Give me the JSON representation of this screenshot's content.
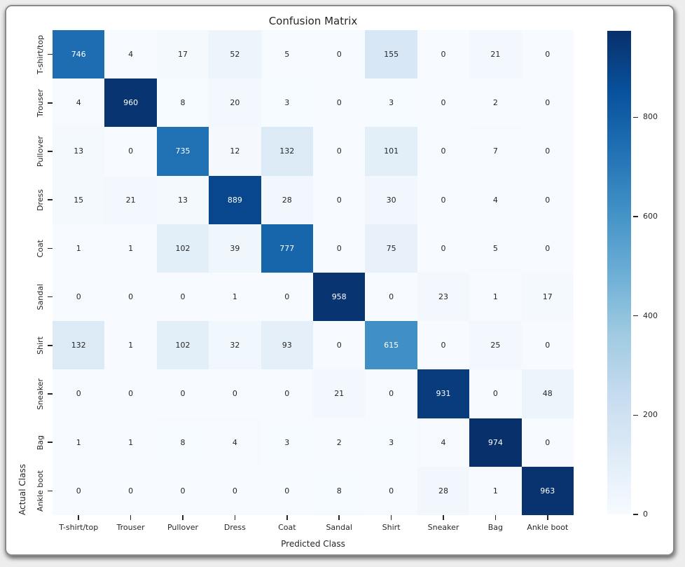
{
  "chart_data": {
    "type": "heatmap",
    "title": "Confusion Matrix",
    "xlabel": "Predicted Class",
    "ylabel": "Actual Class",
    "x_categories": [
      "T-shirt/top",
      "Trouser",
      "Pullover",
      "Dress",
      "Coat",
      "Sandal",
      "Shirt",
      "Sneaker",
      "Bag",
      "Ankle boot"
    ],
    "y_categories": [
      "T-shirt/top",
      "Trouser",
      "Pullover",
      "Dress",
      "Coat",
      "Sandal",
      "Shirt",
      "Sneaker",
      "Bag",
      "Ankle boot"
    ],
    "values": [
      [
        746,
        4,
        17,
        52,
        5,
        0,
        155,
        0,
        21,
        0
      ],
      [
        4,
        960,
        8,
        20,
        3,
        0,
        3,
        0,
        2,
        0
      ],
      [
        13,
        0,
        735,
        12,
        132,
        0,
        101,
        0,
        7,
        0
      ],
      [
        15,
        21,
        13,
        889,
        28,
        0,
        30,
        0,
        4,
        0
      ],
      [
        1,
        1,
        102,
        39,
        777,
        0,
        75,
        0,
        5,
        0
      ],
      [
        0,
        0,
        0,
        1,
        0,
        958,
        0,
        23,
        1,
        17
      ],
      [
        132,
        1,
        102,
        32,
        93,
        0,
        615,
        0,
        25,
        0
      ],
      [
        0,
        0,
        0,
        0,
        0,
        21,
        0,
        931,
        0,
        48
      ],
      [
        1,
        1,
        8,
        4,
        3,
        2,
        3,
        4,
        974,
        0
      ],
      [
        0,
        0,
        0,
        0,
        0,
        8,
        0,
        28,
        1,
        963
      ]
    ],
    "vmin": 0,
    "vmax": 974,
    "grid": false,
    "legend_position": "colorbar-right",
    "colorbar_ticks": [
      0,
      200,
      400,
      600,
      800
    ],
    "colormap": "Blues",
    "colormap_anchors": [
      "#f7fbff",
      "#deebf7",
      "#c6dbef",
      "#9ecae1",
      "#6baed6",
      "#4292c6",
      "#2171b5",
      "#08519c",
      "#08306b"
    ],
    "annotation_color_dark": "#262626",
    "annotation_color_light": "#ffffff"
  }
}
